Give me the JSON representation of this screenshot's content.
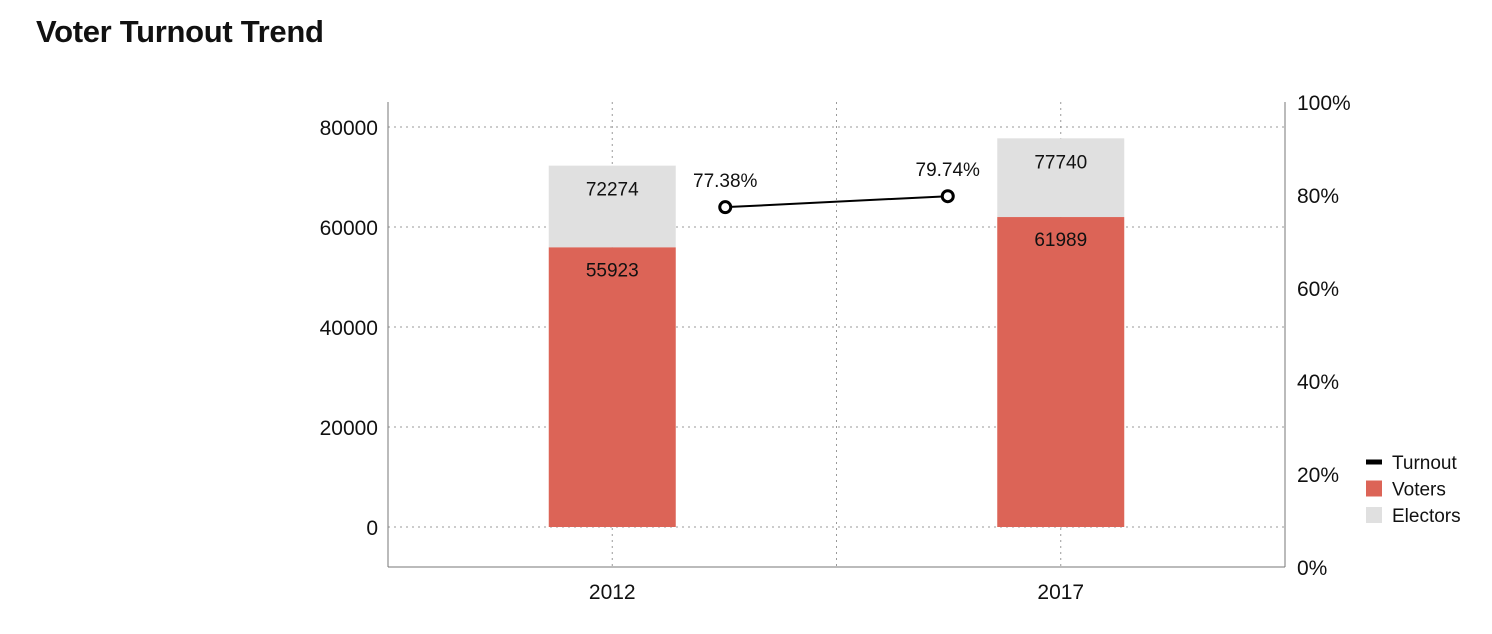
{
  "chart_data": {
    "type": "bar",
    "title": "Voter Turnout Trend",
    "categories": [
      "2012",
      "2017"
    ],
    "series": [
      {
        "name": "Electors",
        "kind": "bar",
        "values": [
          72274,
          77740
        ],
        "color": "#e0e0e0"
      },
      {
        "name": "Voters",
        "kind": "bar",
        "values": [
          55923,
          61989
        ],
        "color": "#dc6457"
      },
      {
        "name": "Turnout",
        "kind": "line",
        "axis": "right",
        "values": [
          77.38,
          79.74
        ],
        "labels": [
          "77.38%",
          "79.74%"
        ],
        "color": "#000000"
      }
    ],
    "y_left": {
      "ylim": [
        -8000,
        85000
      ],
      "ticks": [
        0,
        20000,
        40000,
        60000,
        80000
      ],
      "tick_labels": [
        "0",
        "20000",
        "40000",
        "60000",
        "80000"
      ]
    },
    "y_right": {
      "ylim": [
        0,
        100
      ],
      "ticks": [
        0,
        20,
        40,
        60,
        80,
        100
      ],
      "tick_labels": [
        "0%",
        "20%",
        "40%",
        "60%",
        "80%",
        "100%"
      ]
    },
    "grid": true,
    "legend": {
      "position": "right-bottom",
      "entries": [
        "Turnout",
        "Voters",
        "Electors"
      ]
    }
  }
}
